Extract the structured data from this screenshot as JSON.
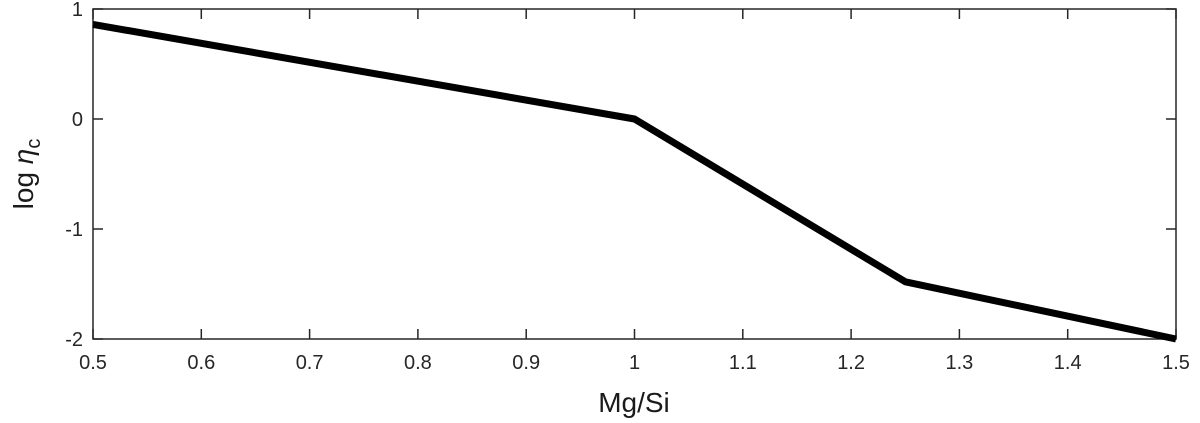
{
  "chart_data": {
    "type": "line",
    "title": "",
    "xlabel": "Mg/Si",
    "ylabel": {
      "prefix": "log ",
      "symbol": "η",
      "subscript": "c"
    },
    "xlim": [
      0.5,
      1.5
    ],
    "ylim": [
      -2,
      1
    ],
    "xticks": [
      0.5,
      0.6,
      0.7,
      0.8,
      0.9,
      1,
      1.1,
      1.2,
      1.3,
      1.4,
      1.5
    ],
    "xtick_labels": [
      "0.5",
      "0.6",
      "0.7",
      "0.8",
      "0.9",
      "1",
      "1.1",
      "1.2",
      "1.3",
      "1.4",
      "1.5"
    ],
    "yticks": [
      1,
      0,
      -1,
      -2
    ],
    "ytick_labels": [
      "1",
      "0",
      "-1",
      "-2"
    ],
    "grid": false,
    "series": [
      {
        "x": [
          0.5,
          1.0,
          1.25,
          1.5
        ],
        "y": [
          0.86,
          0.0,
          -1.48,
          -2.0
        ],
        "color": "#000000"
      }
    ]
  }
}
